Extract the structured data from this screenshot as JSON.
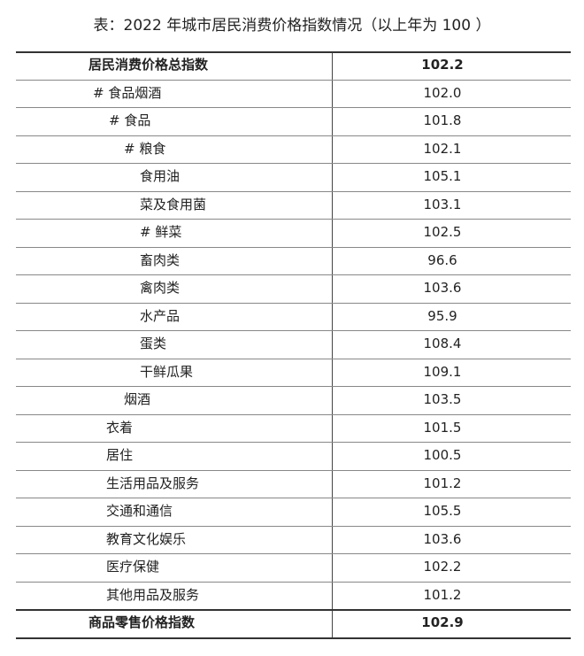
{
  "title": "表：2022 年城市居民消费价格指数情况（以上年为 100 ）",
  "table": {
    "rows": [
      [
        "居民消费价格总指数",
        "102.2"
      ],
      [
        "# 食品烟酒",
        "102.0"
      ],
      [
        "# 食品",
        "101.8"
      ],
      [
        "# 粮食",
        "102.1"
      ],
      [
        "食用油",
        "105.1"
      ],
      [
        "菜及食用菌",
        "103.1"
      ],
      [
        "# 鲜菜",
        "102.5"
      ],
      [
        "畜肉类",
        "96.6"
      ],
      [
        "禽肉类",
        "103.6"
      ],
      [
        "水产品",
        "95.9"
      ],
      [
        "蛋类",
        "108.4"
      ],
      [
        "干鲜瓜果",
        "109.1"
      ],
      [
        "烟酒",
        "103.5"
      ],
      [
        "衣着",
        "101.5"
      ],
      [
        "居住",
        "100.5"
      ],
      [
        "生活用品及服务",
        "101.2"
      ],
      [
        "交通和通信",
        "105.5"
      ],
      [
        "教育文化娱乐",
        "103.6"
      ],
      [
        "医疗保健",
        "102.2"
      ],
      [
        "其他用品及服务",
        "101.2"
      ],
      [
        "商品零售价格指数",
        "102.9"
      ]
    ]
  }
}
